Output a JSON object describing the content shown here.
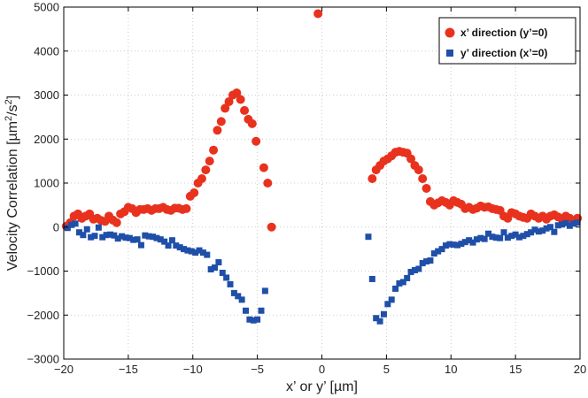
{
  "chart_data": {
    "type": "scatter",
    "title": "",
    "xlabel": "x’ or y’  [µm]",
    "ylabel_main": "Velocity Correlation [µm",
    "ylabel_sup1": "2",
    "ylabel_mid": "/s",
    "ylabel_sup2": "2",
    "ylabel_end": "]",
    "xlim": [
      -20,
      20
    ],
    "ylim": [
      -3000,
      5000
    ],
    "xticks": [
      -20,
      -15,
      -10,
      -5,
      0,
      5,
      10,
      15,
      20
    ],
    "yticks": [
      -3000,
      -2000,
      -1000,
      0,
      1000,
      2000,
      3000,
      4000,
      5000
    ],
    "xtick_labels": [
      "−20",
      "−15",
      "−10",
      "−5",
      "0",
      "5",
      "10",
      "15",
      "20"
    ],
    "ytick_labels": [
      "−3000",
      "−2000",
      "−1000",
      "0",
      "1000",
      "2000",
      "3000",
      "4000",
      "5000"
    ],
    "grid": true,
    "legend_position": "top-right",
    "series": [
      {
        "name": "x’ direction (y’=0)",
        "marker": "circle",
        "color": "#e8321e",
        "points": [
          [
            -19.8,
            20
          ],
          [
            -19.5,
            100
          ],
          [
            -19.2,
            250
          ],
          [
            -18.9,
            300
          ],
          [
            -18.6,
            200
          ],
          [
            -18.3,
            250
          ],
          [
            -18.0,
            300
          ],
          [
            -17.7,
            180
          ],
          [
            -17.4,
            200
          ],
          [
            -17.1,
            150
          ],
          [
            -16.8,
            130
          ],
          [
            -16.5,
            250
          ],
          [
            -16.2,
            160
          ],
          [
            -15.9,
            100
          ],
          [
            -15.6,
            300
          ],
          [
            -15.3,
            350
          ],
          [
            -15.0,
            450
          ],
          [
            -14.7,
            420
          ],
          [
            -14.4,
            330
          ],
          [
            -14.1,
            400
          ],
          [
            -13.8,
            400
          ],
          [
            -13.5,
            420
          ],
          [
            -13.2,
            380
          ],
          [
            -12.9,
            420
          ],
          [
            -12.6,
            420
          ],
          [
            -12.3,
            450
          ],
          [
            -12.0,
            400
          ],
          [
            -11.7,
            380
          ],
          [
            -11.4,
            430
          ],
          [
            -11.1,
            430
          ],
          [
            -10.8,
            400
          ],
          [
            -10.5,
            420
          ],
          [
            -10.2,
            700
          ],
          [
            -9.9,
            780
          ],
          [
            -9.6,
            1000
          ],
          [
            -9.3,
            1100
          ],
          [
            -9.0,
            1300
          ],
          [
            -8.7,
            1500
          ],
          [
            -8.4,
            1750
          ],
          [
            -8.1,
            2200
          ],
          [
            -7.8,
            2400
          ],
          [
            -7.5,
            2700
          ],
          [
            -7.2,
            2850
          ],
          [
            -6.9,
            3000
          ],
          [
            -6.6,
            3050
          ],
          [
            -6.3,
            2900
          ],
          [
            -6.0,
            2650
          ],
          [
            -5.7,
            2450
          ],
          [
            -5.4,
            2350
          ],
          [
            -5.1,
            1950
          ],
          [
            -4.5,
            1350
          ],
          [
            -4.2,
            1000
          ],
          [
            -3.9,
            0
          ],
          [
            -0.3,
            4850
          ],
          [
            3.9,
            1100
          ],
          [
            4.2,
            1300
          ],
          [
            4.5,
            1400
          ],
          [
            4.8,
            1500
          ],
          [
            5.1,
            1550
          ],
          [
            5.4,
            1620
          ],
          [
            5.7,
            1700
          ],
          [
            6.0,
            1720
          ],
          [
            6.3,
            1700
          ],
          [
            6.6,
            1680
          ],
          [
            6.9,
            1550
          ],
          [
            7.2,
            1400
          ],
          [
            7.5,
            1300
          ],
          [
            7.8,
            1100
          ],
          [
            8.1,
            880
          ],
          [
            8.4,
            580
          ],
          [
            8.7,
            500
          ],
          [
            9.0,
            550
          ],
          [
            9.3,
            600
          ],
          [
            9.6,
            560
          ],
          [
            9.9,
            500
          ],
          [
            10.2,
            600
          ],
          [
            10.5,
            560
          ],
          [
            10.8,
            520
          ],
          [
            11.1,
            420
          ],
          [
            11.4,
            450
          ],
          [
            11.7,
            400
          ],
          [
            12.0,
            430
          ],
          [
            12.3,
            480
          ],
          [
            12.6,
            450
          ],
          [
            12.9,
            460
          ],
          [
            13.2,
            420
          ],
          [
            13.5,
            400
          ],
          [
            13.8,
            380
          ],
          [
            14.1,
            250
          ],
          [
            14.4,
            200
          ],
          [
            14.7,
            330
          ],
          [
            15.0,
            300
          ],
          [
            15.3,
            250
          ],
          [
            15.6,
            220
          ],
          [
            15.9,
            200
          ],
          [
            16.2,
            300
          ],
          [
            16.5,
            250
          ],
          [
            16.8,
            200
          ],
          [
            17.1,
            250
          ],
          [
            17.4,
            180
          ],
          [
            17.7,
            250
          ],
          [
            18.0,
            280
          ],
          [
            18.3,
            230
          ],
          [
            18.6,
            180
          ],
          [
            18.9,
            250
          ],
          [
            19.2,
            200
          ],
          [
            19.5,
            120
          ],
          [
            19.8,
            200
          ]
        ]
      },
      {
        "name": "y’ direction (x’=0)",
        "marker": "square",
        "color": "#1f4fa8",
        "points": [
          [
            -19.7,
            -20
          ],
          [
            -19.4,
            50
          ],
          [
            -19.1,
            80
          ],
          [
            -18.8,
            -120
          ],
          [
            -18.5,
            -180
          ],
          [
            -18.2,
            -50
          ],
          [
            -17.9,
            -230
          ],
          [
            -17.6,
            -200
          ],
          [
            -17.3,
            -10
          ],
          [
            -17.0,
            -230
          ],
          [
            -16.7,
            -180
          ],
          [
            -16.4,
            -170
          ],
          [
            -16.1,
            -190
          ],
          [
            -15.8,
            -260
          ],
          [
            -15.5,
            -210
          ],
          [
            -15.2,
            -240
          ],
          [
            -14.9,
            -250
          ],
          [
            -14.6,
            -290
          ],
          [
            -14.3,
            -280
          ],
          [
            -14.0,
            -410
          ],
          [
            -13.7,
            -190
          ],
          [
            -13.4,
            -210
          ],
          [
            -13.1,
            -220
          ],
          [
            -12.8,
            -250
          ],
          [
            -12.5,
            -280
          ],
          [
            -12.2,
            -330
          ],
          [
            -11.9,
            -420
          ],
          [
            -11.6,
            -300
          ],
          [
            -11.3,
            -420
          ],
          [
            -11.0,
            -460
          ],
          [
            -10.7,
            -500
          ],
          [
            -10.4,
            -530
          ],
          [
            -10.1,
            -550
          ],
          [
            -9.8,
            -580
          ],
          [
            -9.5,
            -530
          ],
          [
            -9.2,
            -580
          ],
          [
            -8.9,
            -630
          ],
          [
            -8.6,
            -960
          ],
          [
            -8.3,
            -920
          ],
          [
            -8.0,
            -800
          ],
          [
            -7.7,
            -1040
          ],
          [
            -7.4,
            -1150
          ],
          [
            -7.1,
            -1300
          ],
          [
            -6.8,
            -1500
          ],
          [
            -6.5,
            -1570
          ],
          [
            -6.2,
            -1650
          ],
          [
            -5.9,
            -1900
          ],
          [
            -5.6,
            -2100
          ],
          [
            -5.3,
            -2120
          ],
          [
            -5.0,
            -2100
          ],
          [
            -4.7,
            -1900
          ],
          [
            -4.4,
            -1450
          ],
          [
            3.6,
            -220
          ],
          [
            3.9,
            -1180
          ],
          [
            4.2,
            -2070
          ],
          [
            4.5,
            -2140
          ],
          [
            4.8,
            -1980
          ],
          [
            5.1,
            -1750
          ],
          [
            5.4,
            -1650
          ],
          [
            5.7,
            -1400
          ],
          [
            6.0,
            -1280
          ],
          [
            6.3,
            -1250
          ],
          [
            6.6,
            -1160
          ],
          [
            6.9,
            -1020
          ],
          [
            7.2,
            -980
          ],
          [
            7.5,
            -950
          ],
          [
            7.8,
            -820
          ],
          [
            8.1,
            -780
          ],
          [
            8.4,
            -760
          ],
          [
            8.7,
            -600
          ],
          [
            9.0,
            -550
          ],
          [
            9.3,
            -500
          ],
          [
            9.6,
            -420
          ],
          [
            9.9,
            -390
          ],
          [
            10.2,
            -400
          ],
          [
            10.5,
            -410
          ],
          [
            10.8,
            -380
          ],
          [
            11.1,
            -340
          ],
          [
            11.4,
            -300
          ],
          [
            11.7,
            -350
          ],
          [
            12.0,
            -280
          ],
          [
            12.3,
            -250
          ],
          [
            12.6,
            -270
          ],
          [
            12.9,
            -150
          ],
          [
            13.2,
            -220
          ],
          [
            13.5,
            -240
          ],
          [
            13.8,
            -250
          ],
          [
            14.1,
            -120
          ],
          [
            14.4,
            -240
          ],
          [
            14.7,
            -200
          ],
          [
            15.0,
            -170
          ],
          [
            15.3,
            -230
          ],
          [
            15.6,
            -200
          ],
          [
            15.9,
            -160
          ],
          [
            16.2,
            -120
          ],
          [
            16.5,
            -60
          ],
          [
            16.8,
            -100
          ],
          [
            17.1,
            -80
          ],
          [
            17.4,
            -30
          ],
          [
            17.7,
            0
          ],
          [
            18.0,
            -110
          ],
          [
            18.3,
            40
          ],
          [
            18.6,
            60
          ],
          [
            18.9,
            90
          ],
          [
            19.2,
            30
          ],
          [
            19.5,
            80
          ],
          [
            19.8,
            100
          ]
        ]
      }
    ]
  }
}
